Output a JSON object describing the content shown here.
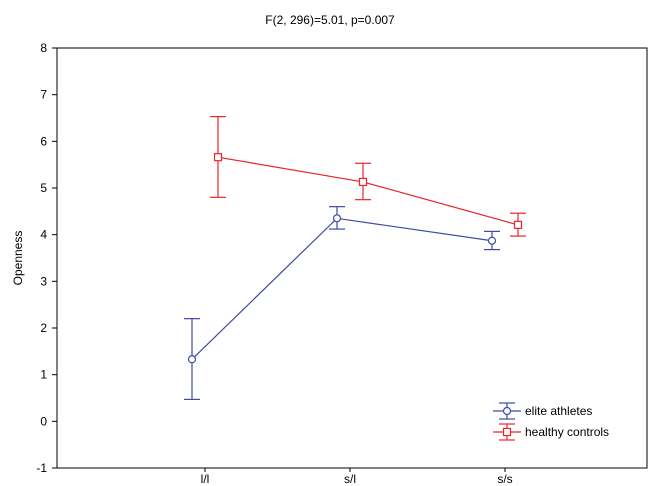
{
  "chart_data": {
    "type": "line",
    "title": "F(2, 296)=5.01, p=0.007",
    "xlabel": "",
    "ylabel": "Openness",
    "categories": [
      "l/l",
      "s/l",
      "s/s"
    ],
    "ylim": [
      -1,
      8
    ],
    "yticks": [
      -1,
      0,
      1,
      2,
      3,
      4,
      5,
      6,
      7,
      8
    ],
    "grid": false,
    "legend_position": "bottom-right",
    "series": [
      {
        "name": "elite athletes",
        "color": "#3c4aa8",
        "marker": "circle",
        "values": [
          1.33,
          4.35,
          3.87
        ],
        "err_low": [
          0.47,
          4.12,
          3.68
        ],
        "err_high": [
          2.2,
          4.6,
          4.07
        ]
      },
      {
        "name": "healthy controls",
        "color": "#e8262e",
        "marker": "square",
        "values": [
          5.66,
          5.13,
          4.21
        ],
        "err_low": [
          4.8,
          4.75,
          3.97
        ],
        "err_high": [
          6.53,
          5.53,
          4.46
        ]
      }
    ]
  }
}
